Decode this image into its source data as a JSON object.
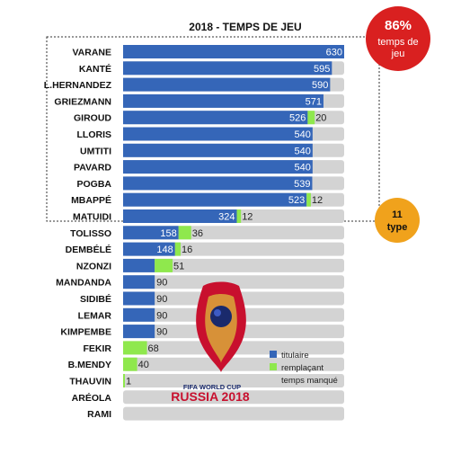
{
  "chart_data": {
    "type": "bar",
    "title": "2018 - TEMPS DE JEU",
    "max_minutes": 630,
    "categories": [
      "VARANE",
      "KANTÉ",
      "L.HERNANDEZ",
      "GRIEZMANN",
      "GIROUD",
      "LLORIS",
      "UMTITI",
      "PAVARD",
      "POGBA",
      "MBAPPÉ",
      "MATUIDI",
      "TOLISSO",
      "DEMBÉLÉ",
      "NZONZI",
      "MANDANDA",
      "SIDIBÉ",
      "LEMAR",
      "KIMPEMBE",
      "FEKIR",
      "B.MENDY",
      "THAUVIN",
      "ARÉOLA",
      "RAMI"
    ],
    "series": [
      {
        "name": "titulaire",
        "values": [
          630,
          595,
          590,
          571,
          526,
          540,
          540,
          540,
          539,
          523,
          324,
          158,
          148,
          90,
          90,
          90,
          90,
          90,
          0,
          0,
          0,
          0,
          0
        ]
      },
      {
        "name": "remplaçant",
        "values": [
          0,
          0,
          0,
          0,
          20,
          0,
          0,
          0,
          0,
          12,
          12,
          36,
          16,
          51,
          0,
          0,
          0,
          0,
          68,
          40,
          1,
          0,
          0
        ]
      }
    ],
    "missed_series_name": "temps manqué",
    "legend_position": "right"
  },
  "colors": {
    "titulaire": "#3566b8",
    "remplacant": "#8fe84d",
    "manque": "#d3d3d3",
    "badge_red": "#d92020",
    "badge_orange": "#f0a21c"
  },
  "badges": {
    "percent_value": "86%",
    "percent_line1": "temps de",
    "percent_line2": "jeu",
    "type_value": "11",
    "type_label": "type"
  },
  "logo": {
    "line1": "FIFA WORLD CUP",
    "line2": "RUSSIA 2018"
  }
}
